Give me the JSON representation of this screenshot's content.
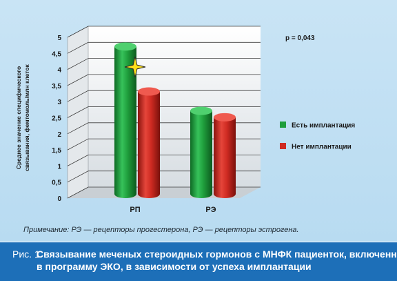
{
  "chart_data": {
    "type": "bar",
    "categories": [
      "РП",
      "РЭ"
    ],
    "series": [
      {
        "name": "Есть имплантация",
        "values": [
          4.8,
          2.8
        ],
        "color": "#1f9e3c"
      },
      {
        "name": "Нет имплантации",
        "values": [
          3.4,
          2.6
        ],
        "color": "#cf2b22"
      }
    ],
    "ylabel": "Среднее значение специфического связывания, фемтомоль/млн клеток",
    "ylim": [
      0,
      5
    ],
    "yticks": [
      "0",
      "0,5",
      "1",
      "1,5",
      "2",
      "2,5",
      "3",
      "3,5",
      "4",
      "4,5",
      "5"
    ],
    "annotation": "p = 0,043",
    "annotation_marker": "star",
    "legend_position": "right",
    "grid": true
  },
  "note": "Примечание: РЭ — рецепторы прогестерона, РЭ — рецепторы эстрогена.",
  "caption": {
    "prefix": "Рис. 1.",
    "line1": "Связывание меченых стероидных гормонов с МНФК пациенток, включенных",
    "line2": "в программу ЭКО, в зависимости от успеха имплантации"
  },
  "colors": {
    "panel_bg": "#c3e1f4",
    "caption_bg": "#1d6fb8"
  }
}
